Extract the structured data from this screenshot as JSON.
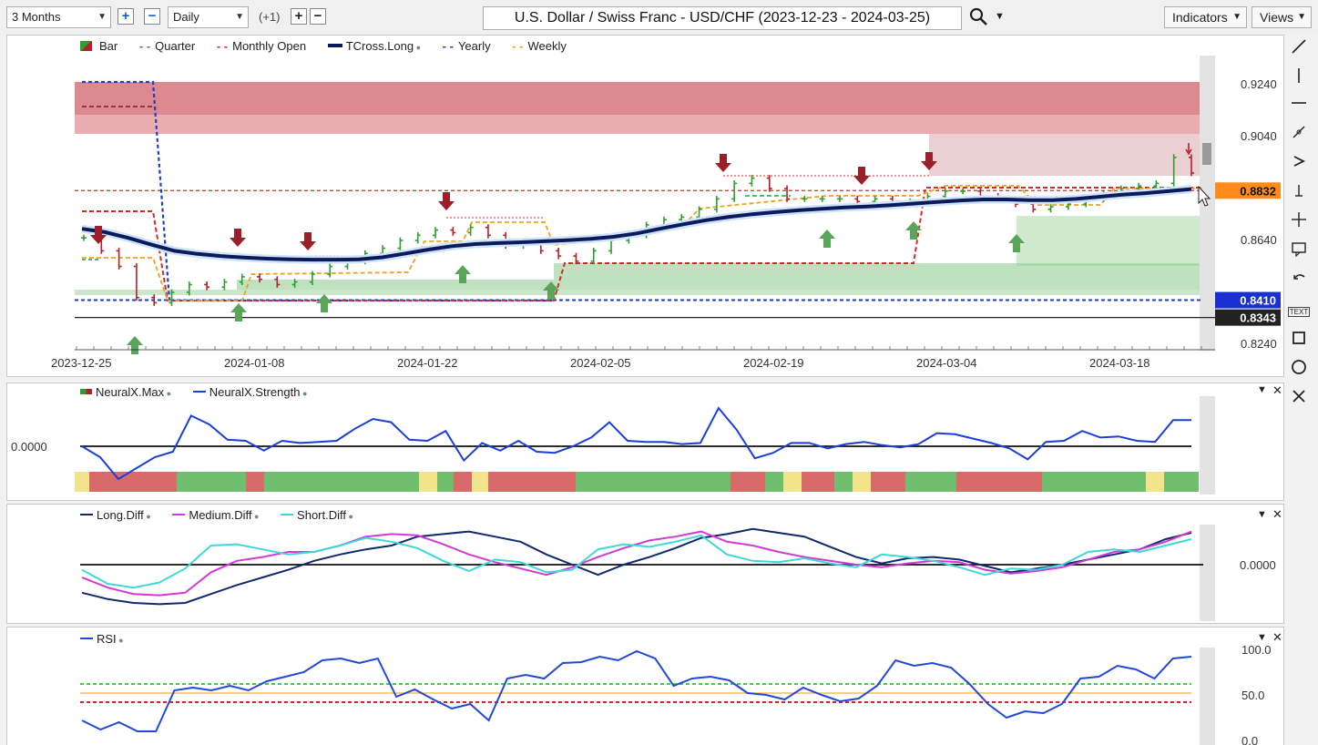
{
  "toolbar": {
    "range": "3 Months",
    "interval": "Daily",
    "offset": "(+1)",
    "plus": "+",
    "minus": "−",
    "title": "U.S. Dollar / Swiss Franc - USD/CHF (2023-12-23 - 2024-03-25)",
    "indicators": "Indicators",
    "views": "Views"
  },
  "legend_main": [
    "Bar",
    "Quarter",
    "Monthly Open",
    "TCross.Long",
    "Yearly",
    "Weekly"
  ],
  "legend_neural": [
    "NeuralX.Max",
    "NeuralX.Strength"
  ],
  "legend_diff": [
    "Long.Diff",
    "Medium.Diff",
    "Short.Diff"
  ],
  "legend_rsi": [
    "RSI"
  ],
  "colors": {
    "bull": "#2e9e2e",
    "bear": "#b3202a",
    "tcross": "#0a1a5c",
    "yearly": "#1f3fc2",
    "monthly": "#d42a2a",
    "weekly": "#f0a020",
    "quarter": "#2a9a4a",
    "neural": "#1a3fd6",
    "long": "#0d2a6e",
    "medium": "#d23ad6",
    "short": "#3fd8d8",
    "rsi": "#2248d8"
  },
  "chart_data": [
    {
      "type": "candlestick",
      "title": "U.S. Dollar / Swiss Franc - USD/CHF (2023-12-23 - 2024-03-25)",
      "x_labels": [
        "2023-12-25",
        "2024-01-08",
        "2024-01-22",
        "2024-02-05",
        "2024-02-19",
        "2024-03-04",
        "2024-03-18"
      ],
      "y_ticks": [
        "0.9240",
        "0.9040",
        "0.8640",
        "0.8240"
      ],
      "ylim": [
        0.82,
        0.93
      ],
      "price_tags": [
        {
          "label": "0.8832",
          "value": 0.8832,
          "color": "#ff8c1a"
        },
        {
          "label": "0.8410",
          "value": 0.841,
          "color": "#1a2fd0"
        },
        {
          "label": "0.8343",
          "value": 0.8343,
          "color": "#222222"
        }
      ],
      "series": [
        {
          "name": "TCross.Long",
          "values": [
            0.8685,
            0.8672,
            0.865,
            0.8624,
            0.86,
            0.8588,
            0.858,
            0.8574,
            0.857,
            0.8567,
            0.8566,
            0.8566,
            0.8567,
            0.8575,
            0.859,
            0.8605,
            0.8618,
            0.8626,
            0.863,
            0.8633,
            0.8637,
            0.8641,
            0.8646,
            0.8654,
            0.8667,
            0.8685,
            0.8702,
            0.8718,
            0.8731,
            0.8741,
            0.8749,
            0.8756,
            0.8762,
            0.8767,
            0.8771,
            0.8776,
            0.8782,
            0.8788,
            0.8794,
            0.8798,
            0.8798,
            0.8795,
            0.8795,
            0.88,
            0.8808,
            0.8816,
            0.8822,
            0.883,
            0.8838
          ]
        }
      ]
    },
    {
      "type": "line",
      "title": "",
      "y_ticks": [
        "0.0000"
      ],
      "series": [
        {
          "name": "NeuralX.Strength",
          "values": [
            0.0,
            -1.0,
            -3.0,
            -2.0,
            -1.0,
            -0.5,
            2.8,
            2.0,
            0.6,
            0.5,
            -0.4,
            0.5,
            0.3,
            0.4,
            0.5,
            1.6,
            2.5,
            2.2,
            0.6,
            0.5,
            1.4,
            -1.3,
            0.3,
            -0.4,
            0.5,
            -0.5,
            -0.6,
            0.0,
            0.8,
            2.2,
            0.5,
            0.4,
            0.4,
            0.2,
            0.3,
            3.5,
            1.5,
            -1.1,
            -0.6,
            0.3,
            0.3,
            -0.2,
            0.2,
            0.4,
            0.1,
            -0.1,
            0.2,
            1.2,
            1.1,
            0.7,
            0.3,
            -0.2,
            -1.2,
            0.4,
            0.5,
            1.4,
            0.8,
            0.9,
            0.5,
            0.4,
            2.4,
            2.4
          ]
        }
      ]
    },
    {
      "type": "line",
      "title": "",
      "y_ticks": [
        "0.0000"
      ],
      "series": [
        {
          "name": "Long.Diff",
          "values": [
            -2.2,
            -2.7,
            -3.0,
            -3.1,
            -3.0,
            -2.3,
            -1.6,
            -1.0,
            -0.4,
            0.3,
            0.8,
            1.2,
            1.5,
            2.2,
            2.4,
            2.6,
            2.2,
            1.8,
            0.8,
            0.0,
            -0.8,
            0.0,
            0.6,
            1.3,
            2.1,
            2.4,
            2.8,
            2.5,
            2.2,
            1.4,
            0.6,
            0.1,
            0.5,
            0.6,
            0.4,
            -0.1,
            -0.6,
            -0.3,
            0.0,
            0.4,
            0.8,
            1.2,
            2.0,
            2.5
          ]
        },
        {
          "name": "Medium.Diff",
          "values": [
            -1.0,
            -1.8,
            -2.3,
            -2.4,
            -2.2,
            -0.6,
            0.3,
            0.6,
            1.0,
            1.0,
            1.5,
            2.2,
            2.4,
            2.3,
            1.6,
            0.8,
            0.2,
            -0.3,
            -0.8,
            -0.2,
            0.6,
            1.3,
            1.9,
            2.2,
            2.6,
            1.8,
            1.5,
            1.0,
            0.6,
            0.3,
            0.0,
            -0.2,
            0.1,
            0.3,
            0.2,
            -0.4,
            -0.7,
            -0.5,
            -0.2,
            0.4,
            1.0,
            1.2,
            1.8,
            2.6
          ]
        },
        {
          "name": "Short.Diff",
          "values": [
            -0.4,
            -1.5,
            -1.8,
            -1.4,
            -0.3,
            1.5,
            1.6,
            1.2,
            0.8,
            1.0,
            1.5,
            2.1,
            1.8,
            1.3,
            0.3,
            -0.5,
            0.4,
            0.2,
            -0.6,
            -0.4,
            1.2,
            1.6,
            1.4,
            1.8,
            2.3,
            0.8,
            0.3,
            0.2,
            0.5,
            0.1,
            -0.2,
            0.8,
            0.6,
            0.3,
            -0.2,
            -0.8,
            -0.3,
            -0.4,
            0.0,
            1.0,
            1.2,
            1.0,
            1.5,
            2.0
          ]
        }
      ]
    },
    {
      "type": "line",
      "title": "",
      "y_ticks": [
        "100.0",
        "50.0",
        "0.0"
      ],
      "ylim": [
        0,
        100
      ],
      "series": [
        {
          "name": "RSI",
          "values": [
            22,
            12,
            20,
            10,
            10,
            55,
            58,
            55,
            60,
            55,
            65,
            70,
            75,
            88,
            90,
            85,
            90,
            48,
            56,
            45,
            35,
            40,
            22,
            68,
            72,
            68,
            85,
            86,
            92,
            88,
            98,
            90,
            60,
            68,
            70,
            66,
            52,
            50,
            45,
            58,
            50,
            43,
            46,
            60,
            88,
            82,
            85,
            80,
            62,
            40,
            25,
            32,
            30,
            40,
            68,
            70,
            82,
            78,
            68,
            90,
            92
          ]
        }
      ]
    }
  ]
}
